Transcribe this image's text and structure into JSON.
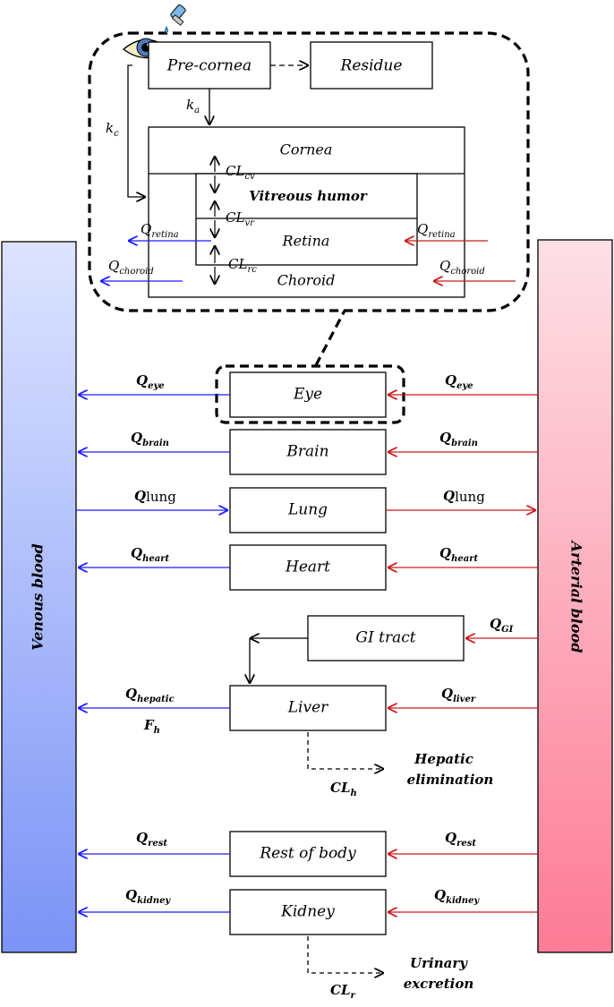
{
  "colors": {
    "venous_top": "#dde4ff",
    "venous_bottom": "#7b93f6",
    "arterial_top": "#fde0e6",
    "arterial_bottom": "#fd7b95",
    "venous_arrow": "#1a1aff",
    "arterial_arrow": "#cc1a1a"
  },
  "icons": [
    "eye-icon",
    "eye-drop-icon"
  ],
  "bars": {
    "venous": "Venous blood",
    "arterial": "Arterial blood"
  },
  "eye_detail": {
    "pre_cornea": "Pre-cornea",
    "residue": "Residue",
    "cornea": "Cornea",
    "vitreous": "Vitreous humor",
    "retina": "Retina",
    "choroid": "Choroid",
    "ka": {
      "base": "k",
      "sub": "a"
    },
    "kc": {
      "base": "k",
      "sub": "c"
    },
    "cl_cv": {
      "base": "CL",
      "sub": "cv"
    },
    "cl_vr": {
      "base": "CL",
      "sub": "vr"
    },
    "cl_rc": {
      "base": "CL",
      "sub": "rc"
    },
    "q_retina_left": {
      "base": "Q",
      "sub": "retina"
    },
    "q_retina_right": {
      "base": "Q",
      "sub": "retina"
    },
    "q_choroid_left": {
      "base": "Q",
      "sub": "choroid"
    },
    "q_choroid_right": {
      "base": "Q",
      "sub": "choroid"
    }
  },
  "organs": {
    "eye": "Eye",
    "brain": "Brain",
    "lung": "Lung",
    "heart": "Heart",
    "gi": "GI tract",
    "liver": "Liver",
    "rest": "Rest of body",
    "kidney": "Kidney"
  },
  "flows": {
    "eye_v": {
      "base": "Q",
      "sub": "eye"
    },
    "eye_a": {
      "base": "Q",
      "sub": "eye"
    },
    "brain_v": {
      "base": "Q",
      "sub": "brain"
    },
    "brain_a": {
      "base": "Q",
      "sub": "brain"
    },
    "lung_v": {
      "base": "Q",
      "sub": "lung"
    },
    "lung_a": {
      "base": "Q",
      "sub": "lung"
    },
    "heart_v": {
      "base": "Q",
      "sub": "heart"
    },
    "heart_a": {
      "base": "Q",
      "sub": "heart"
    },
    "gi_a": {
      "base": "Q",
      "sub": "GI"
    },
    "hepatic_v": {
      "base": "Q",
      "sub": "hepatic"
    },
    "liver_a": {
      "base": "Q",
      "sub": "liver"
    },
    "fh": {
      "base": "F",
      "sub": "h"
    },
    "rest_v": {
      "base": "Q",
      "sub": "rest"
    },
    "rest_a": {
      "base": "Q",
      "sub": "rest"
    },
    "kidney_v": {
      "base": "Q",
      "sub": "kidney"
    },
    "kidney_a": {
      "base": "Q",
      "sub": "kidney"
    }
  },
  "elimination": {
    "hepatic_line1": "Hepatic",
    "hepatic_line2": "elimination",
    "clh": {
      "base": "CL",
      "sub": "h"
    },
    "urinary_line1": "Urinary",
    "urinary_line2": "excretion",
    "clr": {
      "base": "CL",
      "sub": "r"
    }
  }
}
